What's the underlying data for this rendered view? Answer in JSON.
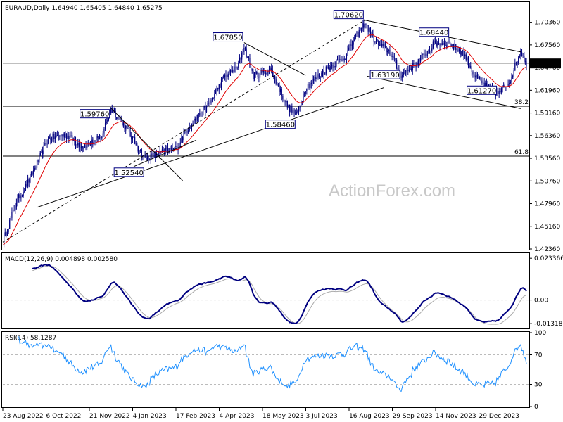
{
  "colors": {
    "background": "#ffffff",
    "candle": "#000080",
    "ema": "#e00000",
    "trendline": "#000000",
    "macd_line": "#000080",
    "macd_signal": "#aaaaaa",
    "rsi_line": "#1e90ff",
    "level_line": "#000000",
    "grid_dash": "#bbbbbb",
    "price_marker": "#000000",
    "watermark": "#c8c8c8"
  },
  "watermark": "ActionForex.com",
  "chart_data": [
    {
      "type": "candlestick",
      "header": "EURAUD,Daily  1.64940 1.65405 1.64840 1.65275",
      "symbol": "EURAUD",
      "timeframe": "Daily",
      "ohlc_last": {
        "open": 1.6494,
        "high": 1.65405,
        "low": 1.6484,
        "close": 1.65275
      },
      "ylim": [
        1.4236,
        1.7276
      ],
      "y_ticks": [
        "1.70360",
        "1.67560",
        "1.64760",
        "1.61960",
        "1.59160",
        "1.56360",
        "1.53560",
        "1.50760",
        "1.47960",
        "1.45160",
        "1.42360"
      ],
      "current_price": "1.65275",
      "x_tick_labels": [
        "23 Aug 2022",
        "6 Oct 2022",
        "21 Nov 2022",
        "4 Jan 2023",
        "17 Feb 2023",
        "4 Apr 2023",
        "18 May 2023",
        "3 Jul 2023",
        "16 Aug 2023",
        "29 Sep 2023",
        "14 Nov 2023",
        "29 Dec 2023"
      ],
      "anchors": [
        {
          "day": 0,
          "price": 1.432
        },
        {
          "day": 12,
          "price": 1.482
        },
        {
          "day": 23,
          "price": 1.508
        },
        {
          "day": 40,
          "price": 1.56
        },
        {
          "day": 55,
          "price": 1.565
        },
        {
          "day": 70,
          "price": 1.55
        },
        {
          "day": 86,
          "price": 1.56
        },
        {
          "day": 95,
          "price": 1.597
        },
        {
          "day": 105,
          "price": 1.58
        },
        {
          "day": 125,
          "price": 1.535
        },
        {
          "day": 140,
          "price": 1.543
        },
        {
          "day": 152,
          "price": 1.548
        },
        {
          "day": 165,
          "price": 1.578
        },
        {
          "day": 180,
          "price": 1.6
        },
        {
          "day": 195,
          "price": 1.637
        },
        {
          "day": 206,
          "price": 1.647
        },
        {
          "day": 212,
          "price": 1.674
        },
        {
          "day": 220,
          "price": 1.637
        },
        {
          "day": 235,
          "price": 1.645
        },
        {
          "day": 250,
          "price": 1.6
        },
        {
          "day": 258,
          "price": 1.589
        },
        {
          "day": 266,
          "price": 1.623
        },
        {
          "day": 285,
          "price": 1.647
        },
        {
          "day": 300,
          "price": 1.66
        },
        {
          "day": 312,
          "price": 1.69
        },
        {
          "day": 318,
          "price": 1.703
        },
        {
          "day": 328,
          "price": 1.678
        },
        {
          "day": 340,
          "price": 1.667
        },
        {
          "day": 350,
          "price": 1.638
        },
        {
          "day": 365,
          "price": 1.655
        },
        {
          "day": 380,
          "price": 1.678
        },
        {
          "day": 393,
          "price": 1.677
        },
        {
          "day": 405,
          "price": 1.665
        },
        {
          "day": 415,
          "price": 1.636
        },
        {
          "day": 428,
          "price": 1.62
        },
        {
          "day": 435,
          "price": 1.615
        },
        {
          "day": 445,
          "price": 1.63
        },
        {
          "day": 455,
          "price": 1.668
        },
        {
          "day": 460,
          "price": 1.653
        }
      ],
      "total_days": 460,
      "ema_period": 20,
      "annotations": [
        {
          "label": "1.70620",
          "day": 318,
          "price": 1.7062
        },
        {
          "label": "1.67850",
          "day": 212,
          "price": 1.6785
        },
        {
          "label": "1.68440",
          "day": 393,
          "price": 1.6844
        },
        {
          "label": "1.59760",
          "day": 95,
          "price": 1.5976
        },
        {
          "label": "1.63190",
          "day": 350,
          "price": 1.6319
        },
        {
          "label": "1.61270",
          "day": 435,
          "price": 1.6127
        },
        {
          "label": "1.58460",
          "day": 258,
          "price": 1.5846
        },
        {
          "label": "1.52540",
          "day": 125,
          "price": 1.5254
        }
      ],
      "horizontal_levels": [
        {
          "label": "38.2",
          "price": 1.5999
        },
        {
          "label": "61.8",
          "price": 1.5383
        },
        {
          "label": "",
          "price": 1.6528
        }
      ],
      "trendlines": [
        {
          "style": "solid",
          "from": {
            "day": 30,
            "price": 1.475
          },
          "to": {
            "day": 335,
            "price": 1.623
          }
        },
        {
          "style": "dashed",
          "from": {
            "day": 0,
            "price": 1.432
          },
          "to": {
            "day": 318,
            "price": 1.7062
          }
        },
        {
          "style": "solid",
          "from": {
            "day": 95,
            "price": 1.5976
          },
          "to": {
            "day": 158,
            "price": 1.508
          }
        },
        {
          "style": "solid",
          "from": {
            "day": 115,
            "price": 1.5254
          },
          "to": {
            "day": 170,
            "price": 1.558
          }
        },
        {
          "style": "solid",
          "from": {
            "day": 212,
            "price": 1.6785
          },
          "to": {
            "day": 266,
            "price": 1.638
          }
        },
        {
          "style": "solid",
          "from": {
            "day": 318,
            "price": 1.7062
          },
          "to": {
            "day": 455,
            "price": 1.667
          }
        },
        {
          "style": "solid",
          "from": {
            "day": 320,
            "price": 1.637
          },
          "to": {
            "day": 455,
            "price": 1.597
          }
        }
      ]
    },
    {
      "type": "line",
      "header": "MACD(12,26,9) 0.004898 0.002580",
      "macd": 0.004898,
      "signal": 0.00258,
      "ylim": [
        -0.0155,
        0.0258
      ],
      "y_ticks": [
        "0.023366",
        "0.00",
        "-0.013186"
      ],
      "zero_label": "0.00"
    },
    {
      "type": "line",
      "header": "RSI(14) 58.1287",
      "value": 58.1287,
      "ylim": [
        0,
        100
      ],
      "y_ticks": [
        "100",
        "70",
        "30",
        "0"
      ],
      "levels": [
        70,
        30
      ]
    }
  ]
}
